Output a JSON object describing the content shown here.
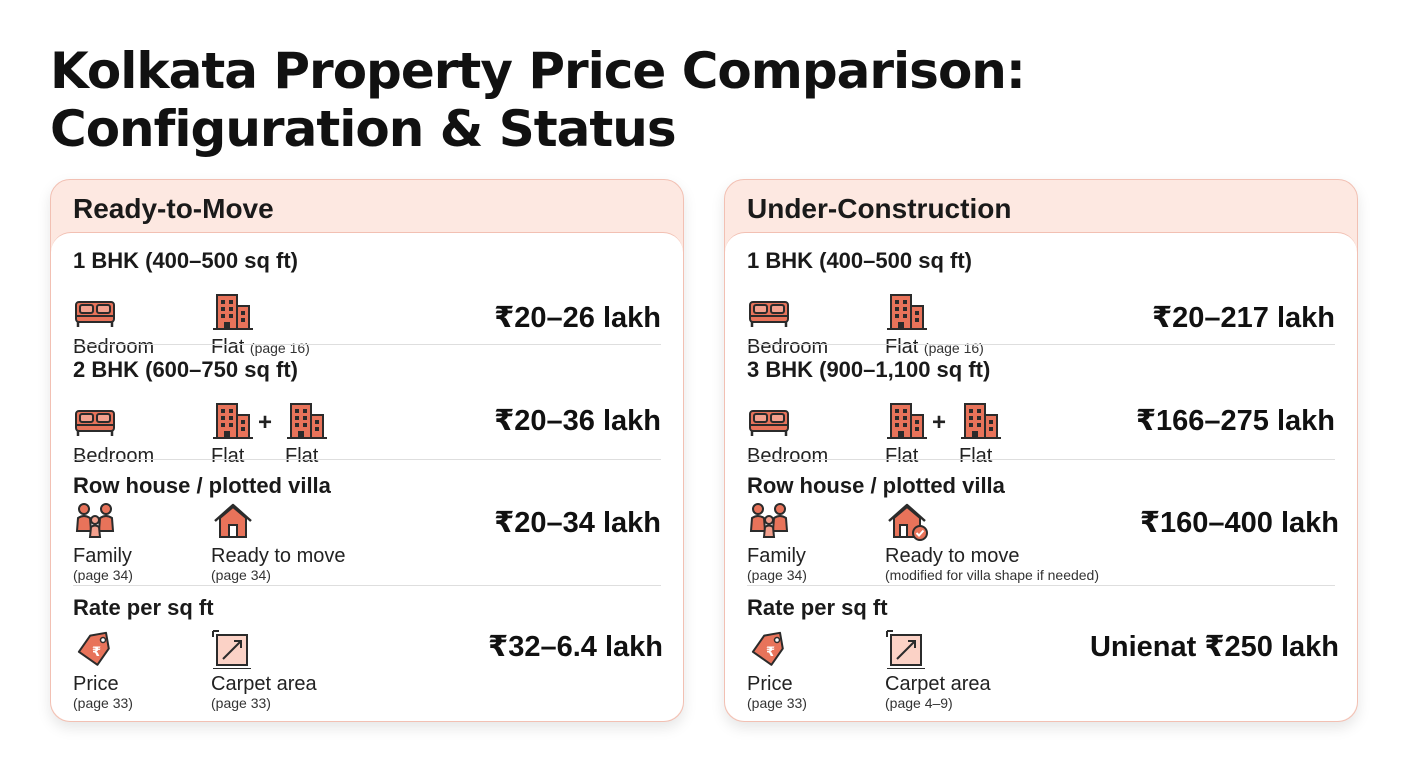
{
  "title": {
    "line1": "Kolkata Property Price Comparison:",
    "line2": "Configuration & Status"
  },
  "colors": {
    "accent": "#e8735a",
    "header_bg": "#fde8e1",
    "border": "#f2c0b3"
  },
  "ready": {
    "header": "Ready-to-Move",
    "rows": [
      {
        "title": "1 BHK (400–500 sq ft)",
        "item1": {
          "icon": "bed-icon",
          "label": "Bedroom"
        },
        "item2": {
          "icon": "building-icon",
          "label": "Flat",
          "note": "(page 16)"
        },
        "price": "₹20–26 lakh"
      },
      {
        "title": "2 BHK (600–750 sq ft)",
        "item1": {
          "icon": "bed-icon",
          "label": "Bedroom"
        },
        "item2": {
          "icon": "building-icon",
          "label": "Flat"
        },
        "plus": "+",
        "item3": {
          "icon": "building-icon",
          "label": "Flat"
        },
        "price": "₹20–36 lakh"
      },
      {
        "title": "Row house / plotted villa",
        "item1": {
          "icon": "family-icon",
          "label": "Family",
          "sub": "(page 34)"
        },
        "item2": {
          "icon": "house-icon",
          "label": "Ready to move",
          "sub": "(page 34)"
        },
        "price": "₹20–34 lakh"
      },
      {
        "title": "Rate per sq ft",
        "item1": {
          "icon": "price-tag-icon",
          "label": "Price",
          "sub": "(page 33)"
        },
        "item2": {
          "icon": "carpet-area-icon",
          "label": "Carpet area",
          "sub": "(page 33)"
        },
        "price": "₹32–6.4 lakh"
      }
    ]
  },
  "under": {
    "header": "Under-Construction",
    "rows": [
      {
        "title": "1 BHK (400–500 sq ft)",
        "item1": {
          "icon": "bed-icon",
          "label": "Bedroom"
        },
        "item2": {
          "icon": "building-icon",
          "label": "Flat",
          "note": "(page 16)"
        },
        "price": "₹20–217 lakh"
      },
      {
        "title": "3 BHK (900–1,100 sq ft)",
        "item1": {
          "icon": "bed-icon",
          "label": "Bedroom"
        },
        "item2": {
          "icon": "building-icon",
          "label": "Flat"
        },
        "plus": "+",
        "item3": {
          "icon": "building-icon",
          "label": "Flat"
        },
        "price": "₹166–275 lakh"
      },
      {
        "title": "Row house / plotted villa",
        "item1": {
          "icon": "family-icon",
          "label": "Family",
          "sub": "(page 34)"
        },
        "item2": {
          "icon": "house-check-icon",
          "label": "Ready to move",
          "sub": "(modified for villa shape if needed)"
        },
        "price": "₹160–400 lakh"
      },
      {
        "title": "Rate per sq ft",
        "item1": {
          "icon": "price-tag-icon",
          "label": "Price",
          "sub": "(page 33)"
        },
        "item2": {
          "icon": "carpet-area-icon",
          "label": "Carpet area",
          "sub": "(page 4–9)"
        },
        "price": "Unienat ₹250 lakh"
      }
    ]
  }
}
